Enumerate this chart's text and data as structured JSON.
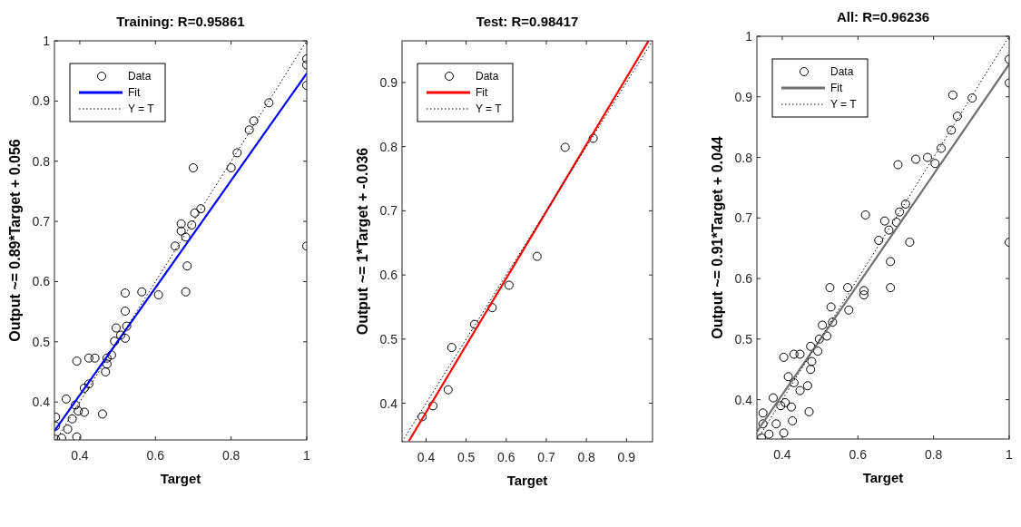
{
  "chart_data": [
    {
      "type": "scatter",
      "title": "Training: R=0.95861",
      "xlabel": "Target",
      "ylabel": "Output ~= 0.89*Target + 0.056",
      "xlim": [
        0.333,
        1
      ],
      "ylim": [
        0.337,
        1
      ],
      "xticks": [
        0.4,
        0.6,
        0.8,
        1
      ],
      "yticks": [
        0.4,
        0.5,
        0.6,
        0.7,
        0.8,
        0.9,
        1
      ],
      "grid": false,
      "legend": "top left",
      "series": [
        {
          "name": "Data",
          "type": "scatter",
          "marker": "circle",
          "color": "#000000",
          "x": [
            1,
            1,
            1,
            1,
            0.9,
            0.86,
            0.848,
            0.816,
            0.8,
            0.7,
            0.72,
            0.704,
            0.696,
            0.668,
            0.668,
            0.68,
            0.652,
            0.684,
            0.68,
            0.608,
            0.564,
            0.52,
            0.52,
            0.524,
            0.496,
            0.508,
            0.52,
            0.492,
            0.484,
            0.472,
            0.472,
            0.468,
            0.44,
            0.424,
            0.392,
            0.424,
            0.412,
            0.46,
            0.412,
            0.396,
            0.388,
            0.364,
            0.38,
            0.368,
            0.392,
            0.352,
            0.336,
            0.336,
            0.336
          ],
          "values": [
            0.97,
            0.96,
            0.926,
            0.659,
            0.897,
            0.867,
            0.852,
            0.814,
            0.789,
            0.789,
            0.721,
            0.714,
            0.694,
            0.696,
            0.684,
            0.674,
            0.659,
            0.626,
            0.583,
            0.578,
            0.583,
            0.581,
            0.551,
            0.526,
            0.523,
            0.511,
            0.506,
            0.501,
            0.478,
            0.473,
            0.463,
            0.45,
            0.473,
            0.473,
            0.468,
            0.43,
            0.423,
            0.38,
            0.383,
            0.385,
            0.395,
            0.405,
            0.372,
            0.355,
            0.342,
            0.34,
            0.375,
            0.36,
            0.338
          ]
        },
        {
          "name": "Fit",
          "type": "line",
          "line_style": "solid",
          "color": "#0000ff",
          "x": [
            0.333,
            1
          ],
          "values": [
            0.352,
            0.946
          ]
        },
        {
          "name": "Y = T",
          "type": "line",
          "line_style": "dotted",
          "color": "#000000",
          "x": [
            0.337,
            1
          ],
          "values": [
            0.337,
            1
          ]
        }
      ]
    },
    {
      "type": "scatter",
      "title": "Test: R=0.98417",
      "xlabel": "Target",
      "ylabel": "Output ~= 1*Target + -0.036",
      "xlim": [
        0.34,
        0.965
      ],
      "ylim": [
        0.34,
        0.965
      ],
      "xticks": [
        0.4,
        0.5,
        0.6,
        0.7,
        0.8,
        0.9
      ],
      "yticks": [
        0.4,
        0.5,
        0.6,
        0.7,
        0.8,
        0.9
      ],
      "grid": false,
      "legend": "top left",
      "series": [
        {
          "name": "Data",
          "type": "scatter",
          "marker": "circle",
          "color": "#000000",
          "x": [
            0.39,
            0.417,
            0.455,
            0.464,
            0.521,
            0.565,
            0.607,
            0.677,
            0.747,
            0.817
          ],
          "values": [
            0.379,
            0.396,
            0.421,
            0.487,
            0.523,
            0.549,
            0.584,
            0.629,
            0.799,
            0.813
          ]
        },
        {
          "name": "Fit",
          "type": "line",
          "line_style": "solid",
          "color": "#ff0000",
          "x": [
            0.357,
            0.955
          ],
          "values": [
            0.341,
            0.965
          ]
        },
        {
          "name": "Y = T",
          "type": "line",
          "line_style": "dotted",
          "color": "#000000",
          "x": [
            0.34,
            0.965
          ],
          "values": [
            0.34,
            0.965
          ]
        }
      ]
    },
    {
      "type": "scatter",
      "title": "All: R=0.96236",
      "xlabel": "Target",
      "ylabel": "Output ~= 0.91*Target + 0.044",
      "xlim": [
        0.333,
        1
      ],
      "ylim": [
        0.335,
        1
      ],
      "xticks": [
        0.4,
        0.6,
        0.8,
        1
      ],
      "yticks": [
        0.4,
        0.5,
        0.6,
        0.7,
        0.8,
        0.9,
        1
      ],
      "grid": false,
      "legend": "top left",
      "series": [
        {
          "name": "Data",
          "type": "scatter",
          "marker": "circle",
          "color": "#000000",
          "x": [
            1,
            1,
            1,
            0.851,
            0.902,
            0.863,
            0.847,
            0.82,
            0.804,
            0.784,
            0.753,
            0.706,
            0.726,
            0.71,
            0.62,
            0.702,
            0.671,
            0.682,
            0.655,
            0.737,
            0.686,
            0.686,
            0.616,
            0.616,
            0.573,
            0.526,
            0.576,
            0.529,
            0.533,
            0.506,
            0.518,
            0.498,
            0.494,
            0.475,
            0.478,
            0.475,
            0.447,
            0.431,
            0.404,
            0.467,
            0.447,
            0.416,
            0.431,
            0.471,
            0.408,
            0.396,
            0.424,
            0.427,
            0.376,
            0.384,
            0.404,
            0.365,
            0.349,
            0.349,
            0.345
          ],
          "values": [
            0.962,
            0.923,
            0.66,
            0.903,
            0.898,
            0.868,
            0.845,
            0.815,
            0.79,
            0.8,
            0.797,
            0.788,
            0.723,
            0.71,
            0.705,
            0.693,
            0.695,
            0.68,
            0.663,
            0.66,
            0.628,
            0.585,
            0.58,
            0.573,
            0.585,
            0.585,
            0.548,
            0.553,
            0.528,
            0.523,
            0.505,
            0.5,
            0.48,
            0.488,
            0.463,
            0.45,
            0.475,
            0.475,
            0.47,
            0.423,
            0.415,
            0.438,
            0.428,
            0.38,
            0.395,
            0.39,
            0.388,
            0.365,
            0.403,
            0.36,
            0.345,
            0.343,
            0.378,
            0.36,
            0.337
          ]
        },
        {
          "name": "Fit",
          "type": "line",
          "line_style": "solid",
          "color": "#707070",
          "x": [
            0.333,
            1
          ],
          "values": [
            0.347,
            0.954
          ]
        },
        {
          "name": "Y = T",
          "type": "line",
          "line_style": "dotted",
          "color": "#000000",
          "x": [
            0.335,
            1
          ],
          "values": [
            0.335,
            1
          ]
        }
      ]
    }
  ]
}
